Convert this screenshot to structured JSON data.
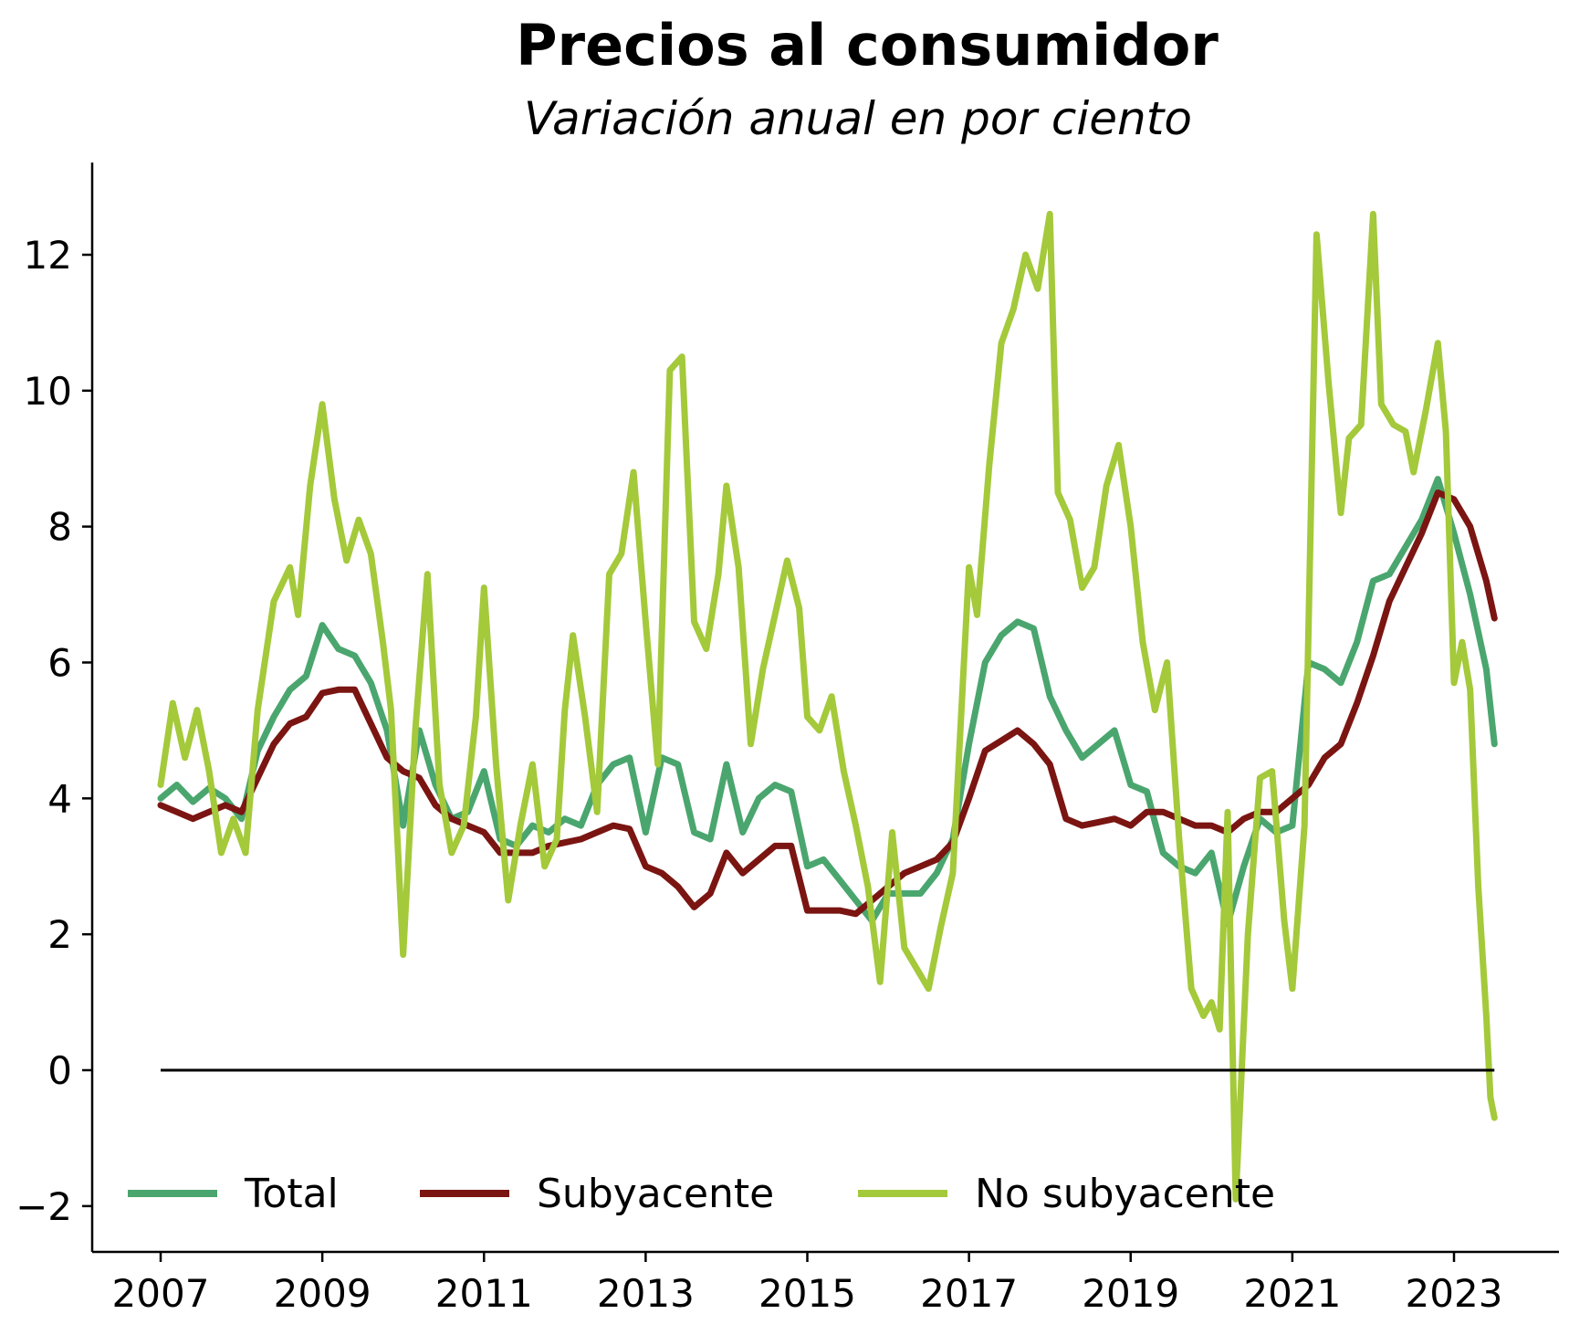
{
  "chart_data": {
    "type": "line",
    "title": "Precios al consumidor",
    "subtitle": "Variación anual en por ciento",
    "xlabel": "",
    "ylabel": "",
    "xlim": [
      2006.6,
      2024.3
    ],
    "ylim": [
      -2.6,
      13.3
    ],
    "x_ticks": [
      2007,
      2009,
      2011,
      2013,
      2015,
      2017,
      2019,
      2021,
      2023
    ],
    "x_tick_labels": [
      "2007",
      "2009",
      "2011",
      "2013",
      "2015",
      "2017",
      "2019",
      "2021",
      "2023"
    ],
    "y_ticks": [
      -2,
      0,
      2,
      4,
      6,
      8,
      10,
      12
    ],
    "y_tick_labels": [
      "−2",
      "0",
      "2",
      "4",
      "6",
      "8",
      "10",
      "12"
    ],
    "reference_line": {
      "y": 0,
      "x_start": 2007.0,
      "x_end": 2023.5,
      "color": "#000000"
    },
    "grid": false,
    "legend_position": "bottom",
    "series": [
      {
        "name": "Total",
        "color": "#4aa66e",
        "points": [
          [
            2007.0,
            4.0
          ],
          [
            2007.2,
            4.2
          ],
          [
            2007.4,
            3.95
          ],
          [
            2007.6,
            4.15
          ],
          [
            2007.8,
            4.0
          ],
          [
            2008.0,
            3.7
          ],
          [
            2008.2,
            4.7
          ],
          [
            2008.4,
            5.2
          ],
          [
            2008.6,
            5.6
          ],
          [
            2008.8,
            5.8
          ],
          [
            2009.0,
            6.55
          ],
          [
            2009.2,
            6.2
          ],
          [
            2009.4,
            6.1
          ],
          [
            2009.6,
            5.7
          ],
          [
            2009.8,
            5.0
          ],
          [
            2010.0,
            3.6
          ],
          [
            2010.2,
            5.0
          ],
          [
            2010.4,
            4.2
          ],
          [
            2010.6,
            3.7
          ],
          [
            2010.8,
            3.8
          ],
          [
            2011.0,
            4.4
          ],
          [
            2011.2,
            3.4
          ],
          [
            2011.4,
            3.3
          ],
          [
            2011.6,
            3.6
          ],
          [
            2011.8,
            3.5
          ],
          [
            2012.0,
            3.7
          ],
          [
            2012.2,
            3.6
          ],
          [
            2012.4,
            4.2
          ],
          [
            2012.6,
            4.5
          ],
          [
            2012.8,
            4.6
          ],
          [
            2013.0,
            3.5
          ],
          [
            2013.2,
            4.6
          ],
          [
            2013.4,
            4.5
          ],
          [
            2013.6,
            3.5
          ],
          [
            2013.8,
            3.4
          ],
          [
            2014.0,
            4.5
          ],
          [
            2014.2,
            3.5
          ],
          [
            2014.4,
            4.0
          ],
          [
            2014.6,
            4.2
          ],
          [
            2014.8,
            4.1
          ],
          [
            2015.0,
            3.0
          ],
          [
            2015.2,
            3.1
          ],
          [
            2015.4,
            2.8
          ],
          [
            2015.6,
            2.5
          ],
          [
            2015.8,
            2.2
          ],
          [
            2016.0,
            2.6
          ],
          [
            2016.2,
            2.6
          ],
          [
            2016.4,
            2.6
          ],
          [
            2016.6,
            2.9
          ],
          [
            2016.8,
            3.4
          ],
          [
            2017.0,
            4.8
          ],
          [
            2017.2,
            6.0
          ],
          [
            2017.4,
            6.4
          ],
          [
            2017.6,
            6.6
          ],
          [
            2017.8,
            6.5
          ],
          [
            2018.0,
            5.5
          ],
          [
            2018.2,
            5.0
          ],
          [
            2018.4,
            4.6
          ],
          [
            2018.6,
            4.8
          ],
          [
            2018.8,
            5.0
          ],
          [
            2019.0,
            4.2
          ],
          [
            2019.2,
            4.1
          ],
          [
            2019.4,
            3.2
          ],
          [
            2019.6,
            3.0
          ],
          [
            2019.8,
            2.9
          ],
          [
            2020.0,
            3.2
          ],
          [
            2020.2,
            2.15
          ],
          [
            2020.4,
            3.0
          ],
          [
            2020.6,
            3.7
          ],
          [
            2020.8,
            3.5
          ],
          [
            2021.0,
            3.6
          ],
          [
            2021.2,
            6.0
          ],
          [
            2021.4,
            5.9
          ],
          [
            2021.6,
            5.7
          ],
          [
            2021.8,
            6.3
          ],
          [
            2022.0,
            7.2
          ],
          [
            2022.2,
            7.3
          ],
          [
            2022.4,
            7.7
          ],
          [
            2022.6,
            8.1
          ],
          [
            2022.8,
            8.7
          ],
          [
            2023.0,
            7.9
          ],
          [
            2023.2,
            7.0
          ],
          [
            2023.4,
            5.9
          ],
          [
            2023.5,
            4.8
          ]
        ]
      },
      {
        "name": "Subyacente",
        "color": "#7a1512",
        "points": [
          [
            2007.0,
            3.9
          ],
          [
            2007.2,
            3.8
          ],
          [
            2007.4,
            3.7
          ],
          [
            2007.6,
            3.8
          ],
          [
            2007.8,
            3.9
          ],
          [
            2008.0,
            3.8
          ],
          [
            2008.2,
            4.3
          ],
          [
            2008.4,
            4.8
          ],
          [
            2008.6,
            5.1
          ],
          [
            2008.8,
            5.2
          ],
          [
            2009.0,
            5.55
          ],
          [
            2009.2,
            5.6
          ],
          [
            2009.4,
            5.6
          ],
          [
            2009.6,
            5.1
          ],
          [
            2009.8,
            4.6
          ],
          [
            2010.0,
            4.4
          ],
          [
            2010.2,
            4.3
          ],
          [
            2010.4,
            3.9
          ],
          [
            2010.6,
            3.7
          ],
          [
            2010.8,
            3.6
          ],
          [
            2011.0,
            3.5
          ],
          [
            2011.2,
            3.2
          ],
          [
            2011.4,
            3.2
          ],
          [
            2011.6,
            3.2
          ],
          [
            2011.8,
            3.3
          ],
          [
            2012.0,
            3.35
          ],
          [
            2012.2,
            3.4
          ],
          [
            2012.4,
            3.5
          ],
          [
            2012.6,
            3.6
          ],
          [
            2012.8,
            3.55
          ],
          [
            2013.0,
            3.0
          ],
          [
            2013.2,
            2.9
          ],
          [
            2013.4,
            2.7
          ],
          [
            2013.6,
            2.4
          ],
          [
            2013.8,
            2.6
          ],
          [
            2014.0,
            3.2
          ],
          [
            2014.2,
            2.9
          ],
          [
            2014.4,
            3.1
          ],
          [
            2014.6,
            3.3
          ],
          [
            2014.8,
            3.3
          ],
          [
            2015.0,
            2.35
          ],
          [
            2015.2,
            2.35
          ],
          [
            2015.4,
            2.35
          ],
          [
            2015.6,
            2.3
          ],
          [
            2015.8,
            2.5
          ],
          [
            2016.0,
            2.7
          ],
          [
            2016.2,
            2.9
          ],
          [
            2016.4,
            3.0
          ],
          [
            2016.6,
            3.1
          ],
          [
            2016.8,
            3.35
          ],
          [
            2017.0,
            4.0
          ],
          [
            2017.2,
            4.7
          ],
          [
            2017.4,
            4.85
          ],
          [
            2017.6,
            5.0
          ],
          [
            2017.8,
            4.8
          ],
          [
            2018.0,
            4.5
          ],
          [
            2018.2,
            3.7
          ],
          [
            2018.4,
            3.6
          ],
          [
            2018.6,
            3.65
          ],
          [
            2018.8,
            3.7
          ],
          [
            2019.0,
            3.6
          ],
          [
            2019.2,
            3.8
          ],
          [
            2019.4,
            3.8
          ],
          [
            2019.6,
            3.7
          ],
          [
            2019.8,
            3.6
          ],
          [
            2020.0,
            3.6
          ],
          [
            2020.2,
            3.5
          ],
          [
            2020.4,
            3.7
          ],
          [
            2020.6,
            3.8
          ],
          [
            2020.8,
            3.8
          ],
          [
            2021.0,
            4.0
          ],
          [
            2021.2,
            4.2
          ],
          [
            2021.4,
            4.6
          ],
          [
            2021.6,
            4.8
          ],
          [
            2021.8,
            5.4
          ],
          [
            2022.0,
            6.1
          ],
          [
            2022.2,
            6.9
          ],
          [
            2022.4,
            7.4
          ],
          [
            2022.6,
            7.9
          ],
          [
            2022.8,
            8.5
          ],
          [
            2023.0,
            8.4
          ],
          [
            2023.2,
            8.0
          ],
          [
            2023.4,
            7.2
          ],
          [
            2023.5,
            6.65
          ]
        ]
      },
      {
        "name": "No subyacente",
        "color": "#a4c93a",
        "points": [
          [
            2007.0,
            4.2
          ],
          [
            2007.15,
            5.4
          ],
          [
            2007.3,
            4.6
          ],
          [
            2007.45,
            5.3
          ],
          [
            2007.6,
            4.4
          ],
          [
            2007.75,
            3.2
          ],
          [
            2007.9,
            3.7
          ],
          [
            2008.05,
            3.2
          ],
          [
            2008.2,
            5.3
          ],
          [
            2008.4,
            6.9
          ],
          [
            2008.6,
            7.4
          ],
          [
            2008.7,
            6.7
          ],
          [
            2008.85,
            8.6
          ],
          [
            2009.0,
            9.8
          ],
          [
            2009.15,
            8.4
          ],
          [
            2009.3,
            7.5
          ],
          [
            2009.45,
            8.1
          ],
          [
            2009.6,
            7.6
          ],
          [
            2009.75,
            6.3
          ],
          [
            2009.85,
            5.3
          ],
          [
            2010.0,
            1.7
          ],
          [
            2010.15,
            5.0
          ],
          [
            2010.3,
            7.3
          ],
          [
            2010.45,
            4.2
          ],
          [
            2010.6,
            3.2
          ],
          [
            2010.75,
            3.6
          ],
          [
            2010.9,
            5.2
          ],
          [
            2011.0,
            7.1
          ],
          [
            2011.15,
            4.5
          ],
          [
            2011.3,
            2.5
          ],
          [
            2011.45,
            3.6
          ],
          [
            2011.6,
            4.5
          ],
          [
            2011.75,
            3.0
          ],
          [
            2011.9,
            3.4
          ],
          [
            2012.0,
            5.3
          ],
          [
            2012.1,
            6.4
          ],
          [
            2012.25,
            5.2
          ],
          [
            2012.4,
            3.8
          ],
          [
            2012.55,
            7.3
          ],
          [
            2012.7,
            7.6
          ],
          [
            2012.85,
            8.8
          ],
          [
            2013.0,
            6.6
          ],
          [
            2013.15,
            4.5
          ],
          [
            2013.3,
            10.3
          ],
          [
            2013.45,
            10.5
          ],
          [
            2013.6,
            6.6
          ],
          [
            2013.75,
            6.2
          ],
          [
            2013.9,
            7.3
          ],
          [
            2014.0,
            8.6
          ],
          [
            2014.15,
            7.4
          ],
          [
            2014.3,
            4.8
          ],
          [
            2014.45,
            5.9
          ],
          [
            2014.6,
            6.7
          ],
          [
            2014.75,
            7.5
          ],
          [
            2014.9,
            6.8
          ],
          [
            2015.0,
            5.2
          ],
          [
            2015.15,
            5.0
          ],
          [
            2015.3,
            5.5
          ],
          [
            2015.45,
            4.4
          ],
          [
            2015.6,
            3.6
          ],
          [
            2015.75,
            2.7
          ],
          [
            2015.9,
            1.3
          ],
          [
            2016.05,
            3.5
          ],
          [
            2016.2,
            1.8
          ],
          [
            2016.35,
            1.5
          ],
          [
            2016.5,
            1.2
          ],
          [
            2016.65,
            2.1
          ],
          [
            2016.8,
            2.9
          ],
          [
            2017.0,
            7.4
          ],
          [
            2017.1,
            6.7
          ],
          [
            2017.25,
            8.9
          ],
          [
            2017.4,
            10.7
          ],
          [
            2017.55,
            11.2
          ],
          [
            2017.7,
            12.0
          ],
          [
            2017.85,
            11.5
          ],
          [
            2018.0,
            12.6
          ],
          [
            2018.1,
            8.5
          ],
          [
            2018.25,
            8.1
          ],
          [
            2018.4,
            7.1
          ],
          [
            2018.55,
            7.4
          ],
          [
            2018.7,
            8.6
          ],
          [
            2018.85,
            9.2
          ],
          [
            2019.0,
            8.0
          ],
          [
            2019.15,
            6.3
          ],
          [
            2019.3,
            5.3
          ],
          [
            2019.45,
            6.0
          ],
          [
            2019.6,
            3.4
          ],
          [
            2019.75,
            1.2
          ],
          [
            2019.9,
            0.8
          ],
          [
            2020.0,
            1.0
          ],
          [
            2020.1,
            0.6
          ],
          [
            2020.2,
            3.8
          ],
          [
            2020.3,
            -1.9
          ],
          [
            2020.45,
            2.0
          ],
          [
            2020.6,
            4.3
          ],
          [
            2020.75,
            4.4
          ],
          [
            2020.9,
            2.2
          ],
          [
            2021.0,
            1.2
          ],
          [
            2021.15,
            3.6
          ],
          [
            2021.3,
            12.3
          ],
          [
            2021.45,
            10.1
          ],
          [
            2021.6,
            8.2
          ],
          [
            2021.7,
            9.3
          ],
          [
            2021.85,
            9.5
          ],
          [
            2022.0,
            12.6
          ],
          [
            2022.1,
            9.8
          ],
          [
            2022.25,
            9.5
          ],
          [
            2022.4,
            9.4
          ],
          [
            2022.5,
            8.8
          ],
          [
            2022.65,
            9.7
          ],
          [
            2022.8,
            10.7
          ],
          [
            2022.9,
            9.4
          ],
          [
            2023.0,
            5.7
          ],
          [
            2023.1,
            6.3
          ],
          [
            2023.2,
            5.6
          ],
          [
            2023.3,
            2.7
          ],
          [
            2023.4,
            0.8
          ],
          [
            2023.45,
            -0.4
          ],
          [
            2023.5,
            -0.7
          ]
        ]
      }
    ]
  }
}
